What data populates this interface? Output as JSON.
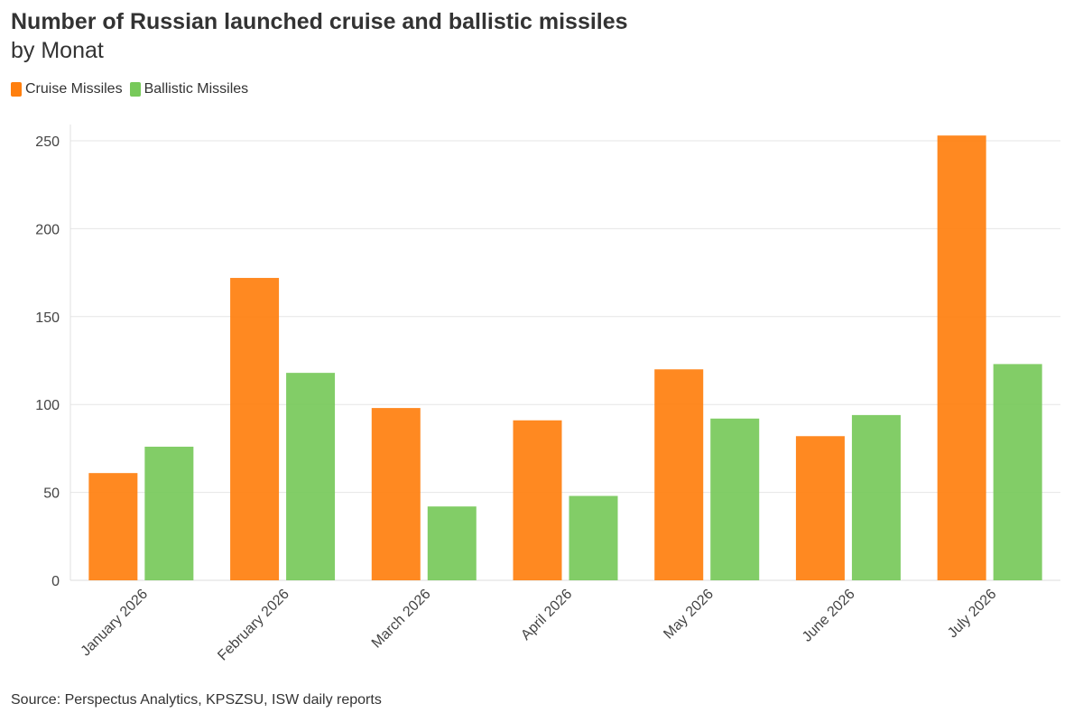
{
  "header": {
    "title": "Number of Russian launched cruise and ballistic missiles",
    "subtitle": "by Monat"
  },
  "footer": {
    "source": "Source: Perspectus Analytics, KPSZSU, ISW daily reports"
  },
  "chart_data": {
    "type": "bar",
    "title": "Number of Russian launched cruise and ballistic missiles",
    "subtitle": "by Monat",
    "xlabel": "",
    "ylabel": "",
    "categories": [
      "January 2026",
      "February 2026",
      "March 2026",
      "April 2026",
      "May 2026",
      "June 2026",
      "July 2026"
    ],
    "series": [
      {
        "name": "Cruise Missiles",
        "color": "#ff7f0e",
        "values": [
          61,
          172,
          98,
          91,
          120,
          82,
          253
        ]
      },
      {
        "name": "Ballistic Missiles",
        "color": "#77c95a",
        "values": [
          76,
          118,
          42,
          48,
          92,
          94,
          123
        ]
      }
    ],
    "ylim": [
      0,
      260
    ],
    "yticks": [
      0,
      50,
      100,
      150,
      200,
      250
    ],
    "grid": true,
    "legend_position": "top-left"
  }
}
